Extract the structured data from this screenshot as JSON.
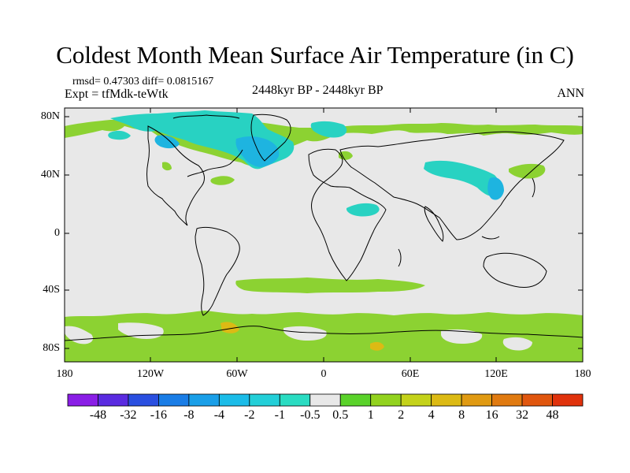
{
  "title": "Coldest Month Mean Surface Air Temperature (in C)",
  "stats_line": "rmsd= 0.47303 diff= 0.0815167",
  "experiment_line": "Expt = tfMdk-teWtk",
  "period_line": "2448kyr BP - 2448kyr BP",
  "season_label": "ANN",
  "lat_labels": [
    "80N",
    "40N",
    "0",
    "40S",
    "80S"
  ],
  "lon_labels": [
    "180",
    "120W",
    "60W",
    "0",
    "60E",
    "120E",
    "180"
  ],
  "colorbar": {
    "labels": [
      "-48",
      "-32",
      "-16",
      "-8",
      "-4",
      "-2",
      "-1",
      "-0.5",
      "0.5",
      "1",
      "2",
      "4",
      "8",
      "16",
      "32",
      "48"
    ],
    "colors": [
      "#8a1ee6",
      "#5a2be0",
      "#2a4fe0",
      "#1a7de6",
      "#1a9fe8",
      "#1bbce8",
      "#23cfd8",
      "#2adcc2",
      "#e8e8e8",
      "#5ad22a",
      "#92d21e",
      "#c4d21a",
      "#dcba14",
      "#e09a12",
      "#e07a10",
      "#e0560e",
      "#e0320c"
    ]
  },
  "colors": {
    "land_green": "#8cd232",
    "mid_green": "#5ec832",
    "cyan": "#28d2c2",
    "light_blue": "#1eb4e0",
    "background_gray": "#e8e8e8"
  }
}
